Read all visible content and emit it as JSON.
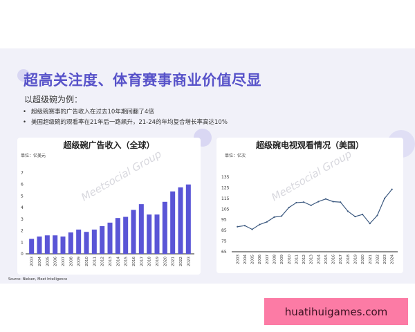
{
  "slide": {
    "title": "超高关注度、体育赛事商业价值尽显",
    "intro": "以超级碗为例：",
    "bullets": [
      "超级碗赛事的广告收入在过去10年期间翻了4倍",
      "美国超级碗的观看率在21年后一路飙升，21-24的年均复合增长率高达10%"
    ],
    "source": "Source: Nielsen, Meet Intelligence",
    "watermark": "Meetsocial Group",
    "accent_color": "#5752c9"
  },
  "site_badge": "huatihuigames.com",
  "chart_data": [
    {
      "type": "bar",
      "title": "超级碗广告收入（全球）",
      "unit": "单位：亿美元",
      "categories": [
        "2003",
        "2004",
        "2005",
        "2006",
        "2007",
        "2008",
        "2009",
        "2010",
        "2011",
        "2012",
        "2013",
        "2014",
        "2015",
        "2016",
        "2017",
        "2018",
        "2019",
        "2020",
        "2021",
        "2022",
        "2023"
      ],
      "values": [
        1.3,
        1.5,
        1.6,
        1.6,
        1.5,
        1.85,
        2.1,
        1.9,
        2.1,
        2.4,
        2.7,
        3.1,
        3.2,
        3.8,
        4.3,
        3.4,
        3.4,
        4.5,
        5.4,
        5.75,
        6.0
      ],
      "yticks": [
        "0",
        "1",
        "2",
        "3",
        "4",
        "5",
        "6",
        "7"
      ],
      "ylim": [
        0,
        7
      ],
      "color": "#5a55d6",
      "grid": false
    },
    {
      "type": "line",
      "title": "超级碗电视观看情况（美国）",
      "unit": "单位：亿次",
      "categories": [
        "2003",
        "2004",
        "2005",
        "2006",
        "2007",
        "2008",
        "2009",
        "2010",
        "2011",
        "2012",
        "2013",
        "2014",
        "2015",
        "2016",
        "2017",
        "2018",
        "2019",
        "2020",
        "2021",
        "2022",
        "2023",
        "2024"
      ],
      "values": [
        88.5,
        89.5,
        86,
        90.5,
        93,
        97.5,
        98.5,
        106.5,
        111,
        111.5,
        108.5,
        112,
        114.5,
        112,
        111.5,
        103,
        98,
        100,
        91.5,
        99,
        115,
        123.5
      ],
      "yticks": [
        "65",
        "75",
        "85",
        "95",
        "105",
        "115",
        "125",
        "135"
      ],
      "ylim": [
        65,
        135
      ],
      "color": "#3d5a80",
      "grid": false
    }
  ]
}
